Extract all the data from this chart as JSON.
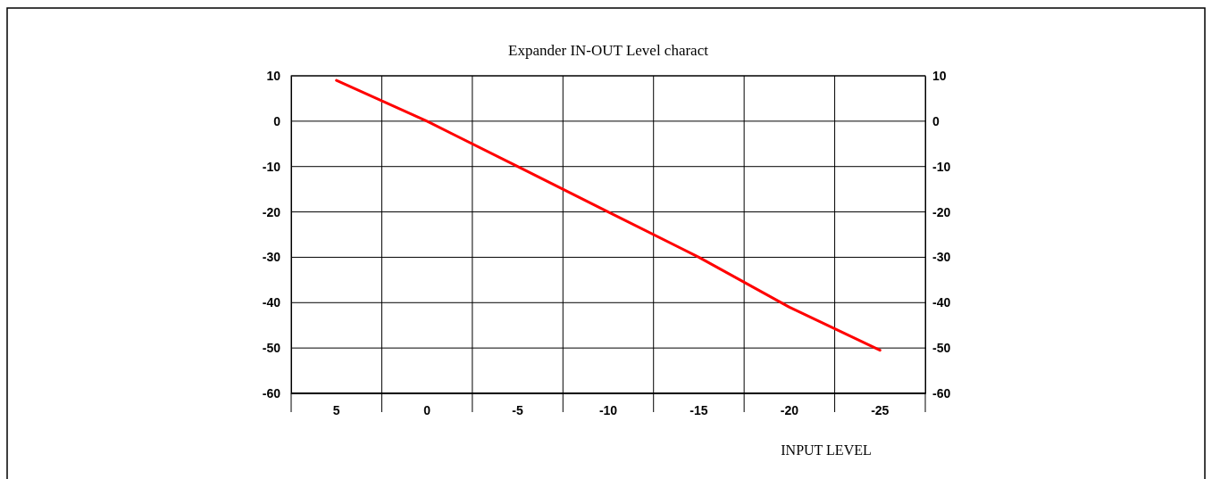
{
  "chart_data": {
    "type": "line",
    "title": "Expander IN-OUT Level charact",
    "xlabel": "INPUT LEVEL",
    "categories": [
      "5",
      "0",
      "-5",
      "-10",
      "-15",
      "-20",
      "-25"
    ],
    "series": [
      {
        "color": "#ff0000",
        "values": [
          9,
          0,
          -10,
          -20,
          -30,
          -41,
          -50.5
        ]
      }
    ],
    "ylim": [
      -60,
      10
    ],
    "yticks": [
      -60,
      -50,
      -40,
      -30,
      -20,
      -10,
      0,
      10
    ],
    "y2lim": [
      -60,
      10
    ],
    "y2ticks": [
      -60,
      -50,
      -40,
      -30,
      -20,
      -10,
      0,
      10
    ],
    "grid": true,
    "marker": "none",
    "line_style": "solid"
  }
}
